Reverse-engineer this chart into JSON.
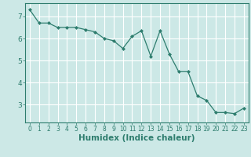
{
  "x": [
    0,
    1,
    2,
    3,
    4,
    5,
    6,
    7,
    8,
    9,
    10,
    11,
    12,
    13,
    14,
    15,
    16,
    17,
    18,
    19,
    20,
    21,
    22,
    23
  ],
  "y": [
    7.3,
    6.7,
    6.7,
    6.5,
    6.5,
    6.5,
    6.4,
    6.3,
    6.0,
    5.9,
    5.55,
    6.1,
    6.35,
    5.2,
    6.35,
    5.3,
    4.5,
    4.5,
    3.4,
    3.2,
    2.65,
    2.65,
    2.6,
    2.85
  ],
  "line_color": "#2e7d6e",
  "marker": "D",
  "marker_size": 2.0,
  "bg_color": "#cce8e6",
  "grid_color": "#ffffff",
  "axis_color": "#2e7d6e",
  "tick_color": "#2e7d6e",
  "xlabel": "Humidex (Indice chaleur)",
  "xlim": [
    -0.5,
    23.5
  ],
  "ylim": [
    2.2,
    7.6
  ],
  "yticks": [
    3,
    4,
    5,
    6,
    7
  ],
  "xticks": [
    0,
    1,
    2,
    3,
    4,
    5,
    6,
    7,
    8,
    9,
    10,
    11,
    12,
    13,
    14,
    15,
    16,
    17,
    18,
    19,
    20,
    21,
    22,
    23
  ],
  "x_font_size": 5.5,
  "y_font_size": 6.5,
  "label_font_size": 7.5,
  "linewidth": 0.9
}
